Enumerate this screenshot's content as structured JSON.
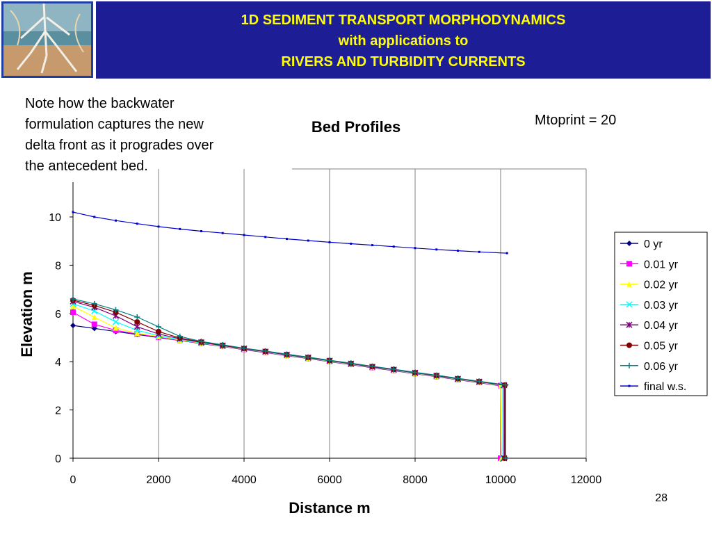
{
  "header": {
    "title_lines": [
      "1D SEDIMENT TRANSPORT MORPHODYNAMICS",
      "with applications to",
      "RIVERS AND TURBIDITY CURRENTS"
    ],
    "colors": {
      "band": "#1d1d96",
      "text": "#ffff00",
      "logo_frame": "#1f3fa0"
    }
  },
  "note": {
    "lines": [
      "Note how the backwater",
      "formulation captures the new",
      "delta front as it progrades over",
      "the antecedent bed."
    ]
  },
  "mtoprint_label": "Mtoprint = 20",
  "slide_number": "28",
  "chart_data": {
    "type": "line",
    "title": "Bed Profiles",
    "xlabel": "Distance m",
    "ylabel": "Elevation m",
    "xlim": [
      0,
      12000
    ],
    "ylim": [
      0,
      11
    ],
    "xticks": [
      0,
      2000,
      4000,
      6000,
      8000,
      10000,
      12000
    ],
    "yticks": [
      0,
      2,
      4,
      6,
      8,
      10
    ],
    "grid": "vertical",
    "legend_position": "right",
    "x": [
      0,
      500,
      1000,
      1500,
      2000,
      2500,
      3000,
      3500,
      4000,
      4500,
      5000,
      5500,
      6000,
      6500,
      7000,
      7500,
      8000,
      8500,
      9000,
      9500,
      10000
    ],
    "series": [
      {
        "name": "0 yr",
        "color": "#000080",
        "marker": "diamond",
        "points": [
          [
            0,
            5.5
          ],
          [
            500,
            5.38
          ],
          [
            1000,
            5.25
          ],
          [
            1500,
            5.13
          ],
          [
            2000,
            5.0
          ],
          [
            2500,
            4.88
          ],
          [
            3000,
            4.75
          ],
          [
            3500,
            4.63
          ],
          [
            4000,
            4.5
          ],
          [
            4500,
            4.38
          ],
          [
            5000,
            4.25
          ],
          [
            5500,
            4.13
          ],
          [
            6000,
            4.0
          ],
          [
            6500,
            3.88
          ],
          [
            7000,
            3.75
          ],
          [
            7500,
            3.63
          ],
          [
            8000,
            3.5
          ],
          [
            8500,
            3.38
          ],
          [
            9000,
            3.25
          ],
          [
            9500,
            3.13
          ],
          [
            10000,
            3.0
          ],
          [
            10000,
            0
          ]
        ]
      },
      {
        "name": "0.01 yr",
        "color": "#ff00ff",
        "marker": "square",
        "points": [
          [
            0,
            6.05
          ],
          [
            500,
            5.55
          ],
          [
            1000,
            5.3
          ],
          [
            1500,
            5.15
          ],
          [
            2000,
            5.02
          ],
          [
            2500,
            4.89
          ],
          [
            3000,
            4.76
          ],
          [
            3500,
            4.64
          ],
          [
            4000,
            4.51
          ],
          [
            4500,
            4.39
          ],
          [
            5000,
            4.26
          ],
          [
            5500,
            4.14
          ],
          [
            6000,
            4.01
          ],
          [
            6500,
            3.89
          ],
          [
            7000,
            3.76
          ],
          [
            7500,
            3.64
          ],
          [
            8000,
            3.51
          ],
          [
            8500,
            3.39
          ],
          [
            9000,
            3.26
          ],
          [
            9500,
            3.14
          ],
          [
            10000,
            3.01
          ],
          [
            10000,
            0
          ]
        ]
      },
      {
        "name": "0.02 yr",
        "color": "#ffff00",
        "marker": "triangle",
        "points": [
          [
            0,
            6.3
          ],
          [
            500,
            5.85
          ],
          [
            1000,
            5.4
          ],
          [
            1500,
            5.18
          ],
          [
            2000,
            5.05
          ],
          [
            2500,
            4.9
          ],
          [
            3000,
            4.77
          ],
          [
            3500,
            4.65
          ],
          [
            4000,
            4.52
          ],
          [
            4500,
            4.4
          ],
          [
            5000,
            4.27
          ],
          [
            5500,
            4.15
          ],
          [
            6000,
            4.02
          ],
          [
            6500,
            3.9
          ],
          [
            7000,
            3.77
          ],
          [
            7500,
            3.65
          ],
          [
            8000,
            3.52
          ],
          [
            8500,
            3.4
          ],
          [
            9000,
            3.27
          ],
          [
            9500,
            3.15
          ],
          [
            10000,
            3.02
          ],
          [
            10020,
            0
          ]
        ]
      },
      {
        "name": "0.03 yr",
        "color": "#00ffff",
        "marker": "x",
        "points": [
          [
            0,
            6.4
          ],
          [
            500,
            6.1
          ],
          [
            1000,
            5.65
          ],
          [
            1500,
            5.3
          ],
          [
            2000,
            5.08
          ],
          [
            2500,
            4.92
          ],
          [
            3000,
            4.78
          ],
          [
            3500,
            4.66
          ],
          [
            4000,
            4.53
          ],
          [
            4500,
            4.41
          ],
          [
            5000,
            4.28
          ],
          [
            5500,
            4.16
          ],
          [
            6000,
            4.03
          ],
          [
            6500,
            3.91
          ],
          [
            7000,
            3.78
          ],
          [
            7500,
            3.66
          ],
          [
            8000,
            3.53
          ],
          [
            8500,
            3.41
          ],
          [
            9000,
            3.28
          ],
          [
            9500,
            3.16
          ],
          [
            10050,
            3.02
          ],
          [
            10050,
            0
          ]
        ]
      },
      {
        "name": "0.04 yr",
        "color": "#800080",
        "marker": "asterisk",
        "points": [
          [
            0,
            6.5
          ],
          [
            500,
            6.25
          ],
          [
            1000,
            5.9
          ],
          [
            1500,
            5.45
          ],
          [
            2000,
            5.15
          ],
          [
            2500,
            4.95
          ],
          [
            3000,
            4.8
          ],
          [
            3500,
            4.67
          ],
          [
            4000,
            4.54
          ],
          [
            4500,
            4.42
          ],
          [
            5000,
            4.29
          ],
          [
            5500,
            4.17
          ],
          [
            6000,
            4.04
          ],
          [
            6500,
            3.92
          ],
          [
            7000,
            3.79
          ],
          [
            7500,
            3.67
          ],
          [
            8000,
            3.54
          ],
          [
            8500,
            3.42
          ],
          [
            9000,
            3.29
          ],
          [
            9500,
            3.17
          ],
          [
            10080,
            3.03
          ],
          [
            10080,
            0
          ]
        ]
      },
      {
        "name": "0.05 yr",
        "color": "#800000",
        "marker": "circle",
        "points": [
          [
            0,
            6.55
          ],
          [
            500,
            6.33
          ],
          [
            1000,
            6.05
          ],
          [
            1500,
            5.65
          ],
          [
            2000,
            5.25
          ],
          [
            2500,
            4.98
          ],
          [
            3000,
            4.82
          ],
          [
            3500,
            4.68
          ],
          [
            4000,
            4.55
          ],
          [
            4500,
            4.43
          ],
          [
            5000,
            4.3
          ],
          [
            5500,
            4.18
          ],
          [
            6000,
            4.05
          ],
          [
            6500,
            3.93
          ],
          [
            7000,
            3.8
          ],
          [
            7500,
            3.68
          ],
          [
            8000,
            3.55
          ],
          [
            8500,
            3.43
          ],
          [
            9000,
            3.3
          ],
          [
            9500,
            3.18
          ],
          [
            10100,
            3.03
          ],
          [
            10100,
            0
          ]
        ]
      },
      {
        "name": "0.06 yr",
        "color": "#008080",
        "marker": "plus",
        "points": [
          [
            0,
            6.6
          ],
          [
            500,
            6.4
          ],
          [
            1000,
            6.15
          ],
          [
            1500,
            5.85
          ],
          [
            2000,
            5.45
          ],
          [
            2500,
            5.05
          ],
          [
            3000,
            4.84
          ],
          [
            3500,
            4.7
          ],
          [
            4000,
            4.56
          ],
          [
            4500,
            4.44
          ],
          [
            5000,
            4.31
          ],
          [
            5500,
            4.19
          ],
          [
            6000,
            4.06
          ],
          [
            6500,
            3.94
          ],
          [
            7000,
            3.81
          ],
          [
            7500,
            3.69
          ],
          [
            8000,
            3.56
          ],
          [
            8500,
            3.44
          ],
          [
            9000,
            3.31
          ],
          [
            9500,
            3.19
          ],
          [
            10120,
            3.04
          ],
          [
            10120,
            0
          ]
        ]
      },
      {
        "name": "final w.s.",
        "color": "#0000cc",
        "marker": "dot",
        "points": [
          [
            0,
            10.2
          ],
          [
            500,
            10.0
          ],
          [
            1000,
            9.85
          ],
          [
            1500,
            9.72
          ],
          [
            2000,
            9.6
          ],
          [
            2500,
            9.5
          ],
          [
            3000,
            9.41
          ],
          [
            3500,
            9.33
          ],
          [
            4000,
            9.25
          ],
          [
            4500,
            9.17
          ],
          [
            5000,
            9.09
          ],
          [
            5500,
            9.02
          ],
          [
            6000,
            8.95
          ],
          [
            6500,
            8.89
          ],
          [
            7000,
            8.83
          ],
          [
            7500,
            8.77
          ],
          [
            8000,
            8.71
          ],
          [
            8500,
            8.65
          ],
          [
            9000,
            8.6
          ],
          [
            9500,
            8.55
          ],
          [
            10150,
            8.5
          ]
        ]
      }
    ]
  }
}
